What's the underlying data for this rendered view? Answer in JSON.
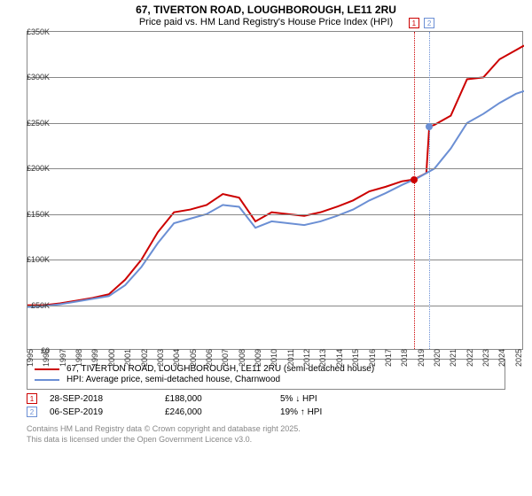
{
  "title": "67, TIVERTON ROAD, LOUGHBOROUGH, LE11 2RU",
  "subtitle": "Price paid vs. HM Land Registry's House Price Index (HPI)",
  "chart": {
    "type": "line",
    "background_color": "#ffffff",
    "border_color": "#888888",
    "x_years": [
      1995,
      1996,
      1997,
      1998,
      1999,
      2000,
      2001,
      2002,
      2003,
      2004,
      2005,
      2006,
      2007,
      2008,
      2009,
      2010,
      2011,
      2012,
      2013,
      2014,
      2015,
      2016,
      2017,
      2018,
      2019,
      2020,
      2021,
      2022,
      2023,
      2024,
      2025
    ],
    "ylim": [
      0,
      350000
    ],
    "ytick_step": 50000,
    "ytick_labels": [
      "£0",
      "£50K",
      "£100K",
      "£150K",
      "£200K",
      "£250K",
      "£300K",
      "£350K"
    ],
    "series": [
      {
        "name": "67, TIVERTON ROAD, LOUGHBOROUGH, LE11 2RU (semi-detached house)",
        "color": "#cc0000",
        "linewidth": 2,
        "years": [
          1995,
          1996,
          1997,
          1998,
          1999,
          2000,
          2001,
          2002,
          2003,
          2004,
          2005,
          2006,
          2007,
          2008,
          2009,
          2010,
          2011,
          2012,
          2013,
          2014,
          2015,
          2016,
          2017,
          2018,
          2018.74,
          2019.5,
          2019.68,
          2020,
          2021,
          2022,
          2023,
          2024,
          2025,
          2025.5
        ],
        "values": [
          50000,
          50000,
          52000,
          55000,
          58000,
          62000,
          78000,
          100000,
          130000,
          152000,
          155000,
          160000,
          172000,
          168000,
          142000,
          152000,
          150000,
          148000,
          152000,
          158000,
          165000,
          175000,
          180000,
          186000,
          188000,
          195000,
          246000,
          248000,
          258000,
          298000,
          300000,
          320000,
          330000,
          335000
        ]
      },
      {
        "name": "HPI: Average price, semi-detached house, Charnwood",
        "color": "#6b8fd4",
        "linewidth": 2,
        "years": [
          1995,
          1996,
          1997,
          1998,
          1999,
          2000,
          2001,
          2002,
          2003,
          2004,
          2005,
          2006,
          2007,
          2008,
          2009,
          2010,
          2011,
          2012,
          2013,
          2014,
          2015,
          2016,
          2017,
          2018,
          2019,
          2020,
          2021,
          2022,
          2023,
          2024,
          2025,
          2025.5
        ],
        "values": [
          48000,
          49000,
          51000,
          54000,
          57000,
          60000,
          72000,
          92000,
          118000,
          140000,
          145000,
          150000,
          160000,
          158000,
          135000,
          142000,
          140000,
          138000,
          142000,
          148000,
          155000,
          165000,
          173000,
          182000,
          190000,
          200000,
          222000,
          250000,
          260000,
          272000,
          282000,
          285000
        ]
      }
    ],
    "x_min": 1995,
    "x_max": 2025.5
  },
  "markers": [
    {
      "index": "1",
      "year": 2018.74,
      "price": 188000,
      "date": "28-SEP-2018",
      "price_label": "£188,000",
      "pct": "5% ↓ HPI",
      "color": "#cc0000"
    },
    {
      "index": "2",
      "year": 2019.68,
      "price": 246000,
      "date": "06-SEP-2019",
      "price_label": "£246,000",
      "pct": "19% ↑ HPI",
      "color": "#6b8fd4"
    }
  ],
  "attribution1": "Contains HM Land Registry data © Crown copyright and database right 2025.",
  "attribution2": "This data is licensed under the Open Government Licence v3.0."
}
